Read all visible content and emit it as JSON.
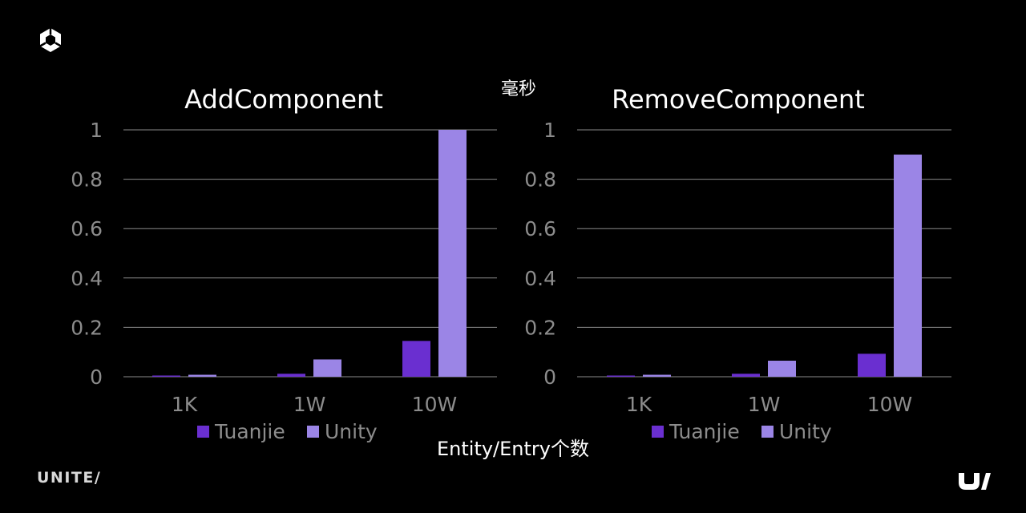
{
  "unit_label": "毫秒",
  "x_axis_label": "Entity/Entry个数",
  "footer": {
    "brand_text": "UNITE/"
  },
  "colors": {
    "tuanjie": "#6a2fd0",
    "unity": "#9b85e6",
    "grid": "#8a8a8a",
    "tick": "#8c8c8c",
    "background": "#000000"
  },
  "icons": {
    "top_left": "unity-cube-logo-icon",
    "bottom_right": "unite-u-logo-icon"
  },
  "chart_data": [
    {
      "type": "bar",
      "title": "AddComponent",
      "categories": [
        "1K",
        "1W",
        "10W"
      ],
      "series": [
        {
          "name": "Tuanjie",
          "values": [
            0.002,
            0.012,
            0.145
          ]
        },
        {
          "name": "Unity",
          "values": [
            0.008,
            0.07,
            1.0
          ]
        }
      ],
      "ylim": [
        0,
        1
      ],
      "yticks": [
        "0",
        "0.2",
        "0.4",
        "0.6",
        "0.8",
        "1"
      ],
      "grid": true,
      "legend": "bottom"
    },
    {
      "type": "bar",
      "title": "RemoveComponent",
      "categories": [
        "1K",
        "1W",
        "10W"
      ],
      "series": [
        {
          "name": "Tuanjie",
          "values": [
            0.002,
            0.012,
            0.093
          ]
        },
        {
          "name": "Unity",
          "values": [
            0.008,
            0.065,
            0.9
          ]
        }
      ],
      "ylim": [
        0,
        1
      ],
      "yticks": [
        "0",
        "0.2",
        "0.4",
        "0.6",
        "0.8",
        "1"
      ],
      "grid": true,
      "legend": "bottom"
    }
  ]
}
